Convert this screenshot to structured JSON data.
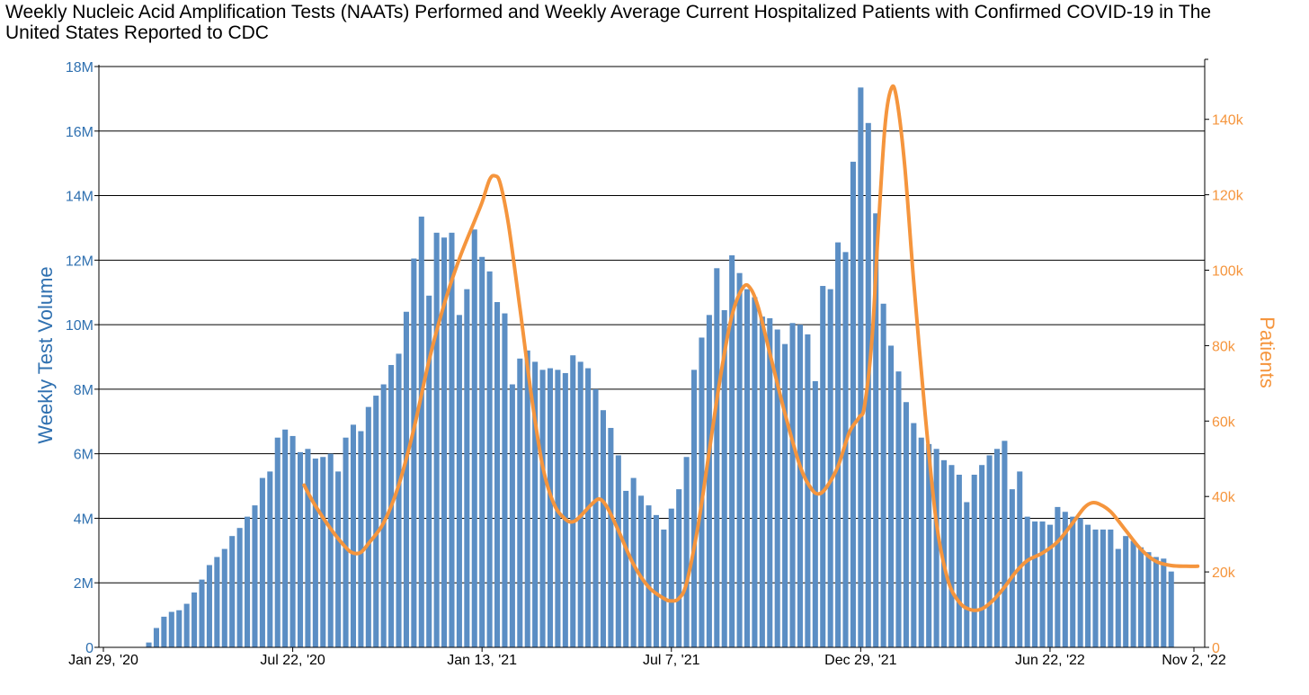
{
  "chart_data": {
    "type": "bar",
    "title": "Weekly Nucleic Acid Amplification Tests (NAATs) Performed and Weekly Average Current Hospitalized Patients with Confirmed COVID-19 in The United States Reported to CDC",
    "ylabel": "Weekly Test Volume",
    "y2label": "Patients",
    "ylim": [
      0,
      18000000
    ],
    "y2lim": [
      0,
      154000
    ],
    "yticks": [
      {
        "value": 0,
        "label": "0"
      },
      {
        "value": 2000000,
        "label": "2M"
      },
      {
        "value": 4000000,
        "label": "4M"
      },
      {
        "value": 6000000,
        "label": "6M"
      },
      {
        "value": 8000000,
        "label": "8M"
      },
      {
        "value": 10000000,
        "label": "10M"
      },
      {
        "value": 12000000,
        "label": "12M"
      },
      {
        "value": 14000000,
        "label": "14M"
      },
      {
        "value": 16000000,
        "label": "16M"
      },
      {
        "value": 18000000,
        "label": "18M"
      }
    ],
    "y2ticks": [
      {
        "value": 0,
        "label": "0"
      },
      {
        "value": 20000,
        "label": "20k"
      },
      {
        "value": 40000,
        "label": "40k"
      },
      {
        "value": 60000,
        "label": "60k"
      },
      {
        "value": 80000,
        "label": "80k"
      },
      {
        "value": 100000,
        "label": "100k"
      },
      {
        "value": 120000,
        "label": "120k"
      },
      {
        "value": 140000,
        "label": "140k"
      }
    ],
    "xticks": [
      {
        "week": 0,
        "label": "Jan 29, '20"
      },
      {
        "week": 25,
        "label": "Jul 22, '20"
      },
      {
        "week": 50,
        "label": "Jan 13, '21"
      },
      {
        "week": 75,
        "label": "Jul 7, '21"
      },
      {
        "week": 100,
        "label": "Dec 29, '21"
      },
      {
        "week": 125,
        "label": "Jun 22, '22"
      },
      {
        "week": 144,
        "label": "Nov 2, '22"
      }
    ],
    "grid": true,
    "bar_color": "#5b8ec4",
    "line_color": "#f5953d",
    "left_axis_color": "#2f70b0",
    "right_axis_color": "#f5953d",
    "series": [
      {
        "type": "bar",
        "axis": "left",
        "start_week": 6,
        "values": [
          150000,
          600000,
          950000,
          1100000,
          1150000,
          1350000,
          1700000,
          2100000,
          2550000,
          2800000,
          3050000,
          3450000,
          3700000,
          4050000,
          4400000,
          5250000,
          5450000,
          6500000,
          6750000,
          6550000,
          6050000,
          6150000,
          5850000,
          5900000,
          6000000,
          5450000,
          6500000,
          6900000,
          6700000,
          7450000,
          7800000,
          8150000,
          8750000,
          9100000,
          10400000,
          12050000,
          13350000,
          10900000,
          12850000,
          12700000,
          12850000,
          10300000,
          11100000,
          12950000,
          12100000,
          11650000,
          10700000,
          10350000,
          8150000,
          8950000,
          9200000,
          8850000,
          8600000,
          8650000,
          8600000,
          8500000,
          9050000,
          8850000,
          8650000,
          8000000,
          7350000,
          6800000,
          5950000,
          4850000,
          5250000,
          4700000,
          4400000,
          4100000,
          3650000,
          4300000,
          4900000,
          5900000,
          8600000,
          9600000,
          10300000,
          11750000,
          10450000,
          12150000,
          11600000,
          11100000,
          10850000,
          10250000,
          10200000,
          9850000,
          9400000,
          10050000,
          10000000,
          9700000,
          8250000,
          11200000,
          11100000,
          12550000,
          12250000,
          15050000,
          17350000,
          16250000,
          13450000,
          10650000,
          9350000,
          8550000,
          7600000,
          6950000,
          6500000,
          6300000,
          6150000,
          5800000,
          5650000,
          5350000,
          4500000,
          5350000,
          5650000,
          5950000,
          6150000,
          6400000,
          4900000,
          5450000,
          4050000,
          3900000,
          3900000,
          3800000,
          4350000,
          4200000,
          4050000,
          4000000,
          3800000,
          3650000,
          3650000,
          3650000,
          3050000,
          3450000,
          3300000,
          3100000,
          2950000,
          2800000,
          2750000,
          2350000
        ]
      },
      {
        "type": "line",
        "axis": "right",
        "points": [
          [
            26.5,
            43000
          ],
          [
            28,
            37500
          ],
          [
            30,
            31500
          ],
          [
            32,
            26500
          ],
          [
            33,
            25000
          ],
          [
            34,
            25200
          ],
          [
            35,
            27500
          ],
          [
            37,
            33000
          ],
          [
            39,
            43000
          ],
          [
            41,
            58000
          ],
          [
            43,
            76000
          ],
          [
            45,
            91000
          ],
          [
            47,
            103000
          ],
          [
            49,
            113000
          ],
          [
            50,
            118000
          ],
          [
            51,
            124000
          ],
          [
            51.7,
            125000
          ],
          [
            52.4,
            123000
          ],
          [
            53.5,
            112000
          ],
          [
            55,
            90000
          ],
          [
            56.5,
            67000
          ],
          [
            58,
            48000
          ],
          [
            59.5,
            38000
          ],
          [
            61,
            34000
          ],
          [
            62,
            33300
          ],
          [
            63,
            34800
          ],
          [
            64.5,
            38000
          ],
          [
            65.5,
            39300
          ],
          [
            66.5,
            37200
          ],
          [
            68,
            31000
          ],
          [
            70,
            22000
          ],
          [
            72,
            16000
          ],
          [
            74,
            13000
          ],
          [
            75,
            12300
          ],
          [
            76,
            13000
          ],
          [
            77,
            17000
          ],
          [
            78.5,
            32000
          ],
          [
            80,
            52000
          ],
          [
            81.5,
            72000
          ],
          [
            83,
            88000
          ],
          [
            84.5,
            95500
          ],
          [
            85.5,
            95000
          ],
          [
            86.5,
            90000
          ],
          [
            88,
            78000
          ],
          [
            90,
            62000
          ],
          [
            92,
            48000
          ],
          [
            93.5,
            42000
          ],
          [
            94.5,
            40700
          ],
          [
            95.5,
            42500
          ],
          [
            97,
            48000
          ],
          [
            98.5,
            57000
          ],
          [
            99.8,
            61000
          ],
          [
            100.5,
            64000
          ],
          [
            101.5,
            82000
          ],
          [
            102.3,
            110000
          ],
          [
            103.2,
            138000
          ],
          [
            104,
            148000
          ],
          [
            104.7,
            146000
          ],
          [
            105.8,
            128000
          ],
          [
            107,
            97000
          ],
          [
            108.5,
            62000
          ],
          [
            110,
            33000
          ],
          [
            111.5,
            18000
          ],
          [
            113,
            12000
          ],
          [
            114.5,
            10000
          ],
          [
            116,
            10200
          ],
          [
            117.5,
            12500
          ],
          [
            119,
            16000
          ],
          [
            120.5,
            20000
          ],
          [
            122,
            23000
          ],
          [
            124,
            25000
          ],
          [
            126,
            28000
          ],
          [
            128,
            33000
          ],
          [
            129.5,
            37000
          ],
          [
            130.5,
            38300
          ],
          [
            131.5,
            38000
          ],
          [
            133,
            36000
          ],
          [
            135,
            31000
          ],
          [
            137,
            26000
          ],
          [
            139,
            22800
          ],
          [
            141,
            21700
          ],
          [
            143,
            21500
          ],
          [
            144.5,
            21500
          ]
        ]
      }
    ]
  }
}
